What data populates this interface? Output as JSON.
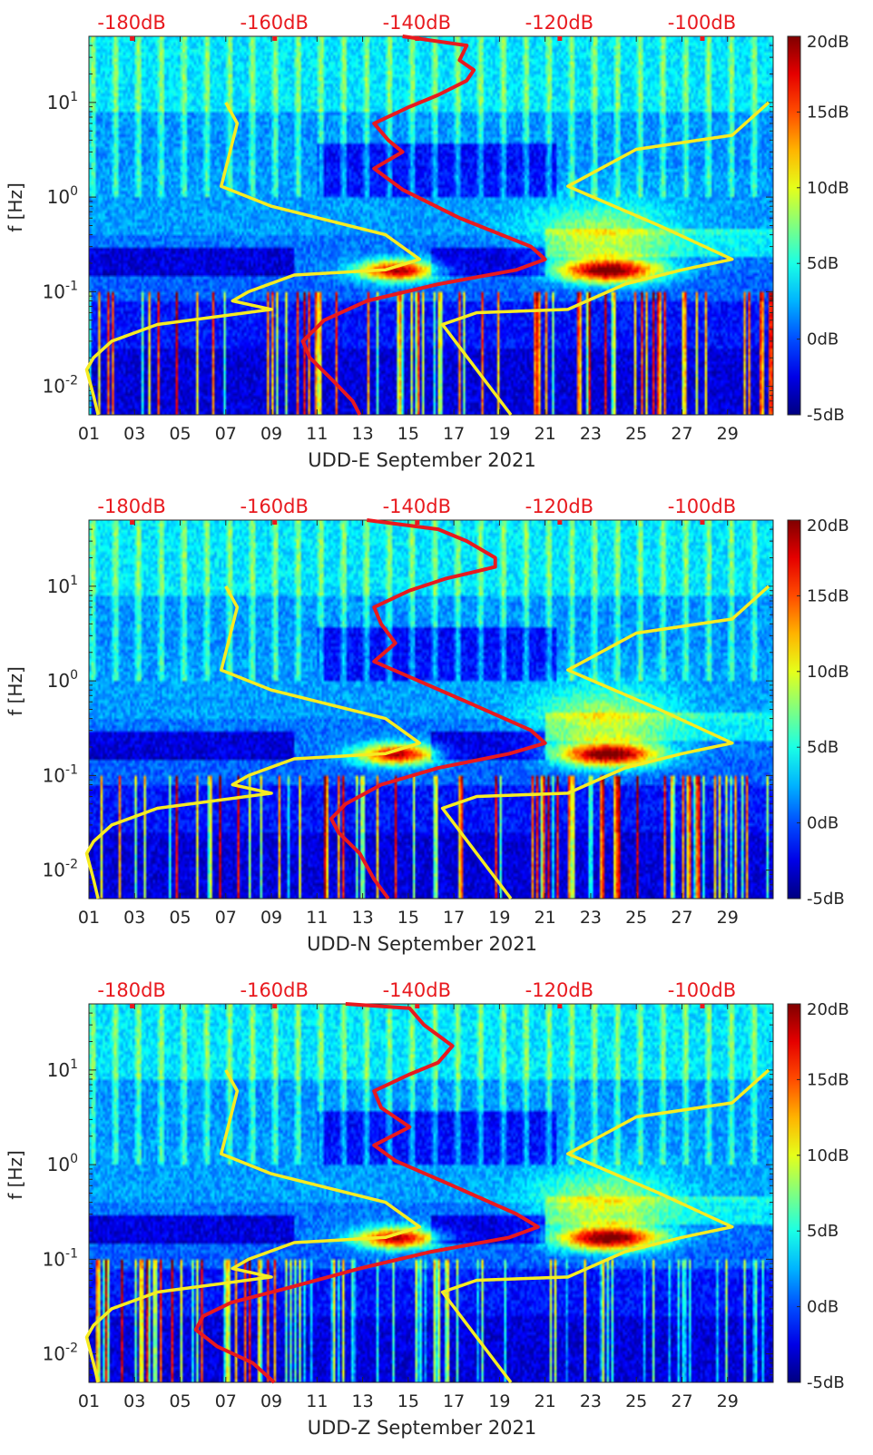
{
  "colors": {
    "psd_curve": "#e8191e",
    "model_curve": "#f6ec22",
    "top_axis_text": "#e8191e",
    "axis_text": "#262626"
  },
  "chart_data": [
    {
      "type": "heatmap",
      "station": "UDD-E",
      "xlabel": "UDD-E September 2021",
      "ylabel": "f [Hz]",
      "x_ticks": [
        "01",
        "03",
        "05",
        "07",
        "09",
        "11",
        "13",
        "15",
        "17",
        "19",
        "21",
        "23",
        "25",
        "27",
        "29"
      ],
      "x_range_days": [
        1,
        31
      ],
      "y_scale": "log",
      "ylim_hz": [
        0.005,
        50
      ],
      "y_ticks": [
        "10^-2",
        "10^-1",
        "10^0",
        "10^1"
      ],
      "top_axis_ticks": [
        "-180dB",
        "-160dB",
        "-140dB",
        "-120dB",
        "-100dB"
      ],
      "top_axis_values_db": [
        -180,
        -160,
        -140,
        -120,
        -100
      ],
      "top_axis_range_db": [
        -186,
        -90
      ],
      "colorbar_ticks": [
        "20dB",
        "15dB",
        "10dB",
        "5dB",
        "0dB",
        "-5dB"
      ],
      "colorbar_range_db": [
        -5,
        20
      ],
      "series": [
        {
          "name": "power spectral density",
          "color": "red",
          "points_db_hz": [
            [
              -142,
              50
            ],
            [
              -133,
              40
            ],
            [
              -134,
              28
            ],
            [
              -132,
              22
            ],
            [
              -133,
              17
            ],
            [
              -137,
              12
            ],
            [
              -141,
              9
            ],
            [
              -146,
              6
            ],
            [
              -144,
              4
            ],
            [
              -142,
              3
            ],
            [
              -146,
              2
            ],
            [
              -142,
              1.2
            ],
            [
              -134,
              0.6
            ],
            [
              -124,
              0.3
            ],
            [
              -122,
              0.22
            ],
            [
              -126,
              0.17
            ],
            [
              -137,
              0.12
            ],
            [
              -147,
              0.08
            ],
            [
              -153,
              0.05
            ],
            [
              -156,
              0.03
            ],
            [
              -155,
              0.02
            ],
            [
              -152,
              0.012
            ],
            [
              -149,
              0.007
            ],
            [
              -148,
              0.005
            ]
          ]
        },
        {
          "name": "noise model",
          "color": "yellow",
          "points_day_hz": [
            [
              7.0,
              10
            ],
            [
              7.5,
              6
            ],
            [
              6.8,
              1.3
            ],
            [
              9,
              0.8
            ],
            [
              14,
              0.4
            ],
            [
              15.5,
              0.22
            ],
            [
              14,
              0.17
            ],
            [
              10,
              0.15
            ],
            [
              8,
              0.1
            ],
            [
              7.3,
              0.08
            ],
            [
              9,
              0.065
            ],
            [
              4,
              0.045
            ],
            [
              2,
              0.03
            ],
            [
              1.2,
              0.02
            ],
            [
              0.9,
              0.015
            ],
            [
              1.2,
              0.008
            ],
            [
              1.4,
              0.005
            ]
          ]
        },
        {
          "name": "noise model",
          "color": "yellow",
          "points_day_hz": [
            [
              30.8,
              10
            ],
            [
              29.2,
              4.5
            ],
            [
              25,
              3.2
            ],
            [
              22,
              1.3
            ],
            [
              26,
              0.5
            ],
            [
              29.2,
              0.22
            ],
            [
              27,
              0.17
            ],
            [
              24.5,
              0.12
            ],
            [
              22,
              0.065
            ],
            [
              18,
              0.06
            ],
            [
              16.5,
              0.045
            ],
            [
              18,
              0.015
            ],
            [
              19.5,
              0.005
            ]
          ]
        }
      ]
    },
    {
      "type": "heatmap",
      "station": "UDD-N",
      "xlabel": "UDD-N September 2021",
      "ylabel": "f [Hz]",
      "x_ticks": [
        "01",
        "03",
        "05",
        "07",
        "09",
        "11",
        "13",
        "15",
        "17",
        "19",
        "21",
        "23",
        "25",
        "27",
        "29"
      ],
      "x_range_days": [
        1,
        31
      ],
      "y_scale": "log",
      "ylim_hz": [
        0.005,
        50
      ],
      "y_ticks": [
        "10^-2",
        "10^-1",
        "10^0",
        "10^1"
      ],
      "top_axis_ticks": [
        "-180dB",
        "-160dB",
        "-140dB",
        "-120dB",
        "-100dB"
      ],
      "top_axis_values_db": [
        -180,
        -160,
        -140,
        -120,
        -100
      ],
      "top_axis_range_db": [
        -186,
        -90
      ],
      "colorbar_ticks": [
        "20dB",
        "15dB",
        "10dB",
        "5dB",
        "0dB",
        "-5dB"
      ],
      "colorbar_range_db": [
        -5,
        20
      ],
      "series": [
        {
          "name": "power spectral density",
          "color": "red",
          "points_db_hz": [
            [
              -147,
              50
            ],
            [
              -137,
              40
            ],
            [
              -133,
              30
            ],
            [
              -129,
              20
            ],
            [
              -129,
              16
            ],
            [
              -136,
              12
            ],
            [
              -141,
              9
            ],
            [
              -146,
              6
            ],
            [
              -145,
              4
            ],
            [
              -143,
              2.5
            ],
            [
              -146,
              1.6
            ],
            [
              -141,
              1.1
            ],
            [
              -133,
              0.6
            ],
            [
              -124,
              0.3
            ],
            [
              -122,
              0.22
            ],
            [
              -127,
              0.17
            ],
            [
              -137,
              0.12
            ],
            [
              -145,
              0.08
            ],
            [
              -150,
              0.05
            ],
            [
              -152,
              0.035
            ],
            [
              -151,
              0.025
            ],
            [
              -148,
              0.015
            ],
            [
              -146,
              0.008
            ],
            [
              -144,
              0.005
            ]
          ]
        },
        {
          "name": "noise model",
          "color": "yellow",
          "points_day_hz": [
            [
              7.0,
              10
            ],
            [
              7.5,
              6
            ],
            [
              6.8,
              1.3
            ],
            [
              9,
              0.8
            ],
            [
              14,
              0.4
            ],
            [
              15.5,
              0.22
            ],
            [
              14,
              0.17
            ],
            [
              10,
              0.15
            ],
            [
              8,
              0.1
            ],
            [
              7.3,
              0.08
            ],
            [
              9,
              0.065
            ],
            [
              4,
              0.045
            ],
            [
              2,
              0.03
            ],
            [
              1.2,
              0.02
            ],
            [
              0.9,
              0.015
            ],
            [
              1.2,
              0.008
            ],
            [
              1.4,
              0.005
            ]
          ]
        },
        {
          "name": "noise model",
          "color": "yellow",
          "points_day_hz": [
            [
              30.8,
              10
            ],
            [
              29.2,
              4.5
            ],
            [
              25,
              3.2
            ],
            [
              22,
              1.3
            ],
            [
              26,
              0.5
            ],
            [
              29.2,
              0.22
            ],
            [
              27,
              0.17
            ],
            [
              24.5,
              0.12
            ],
            [
              22,
              0.065
            ],
            [
              18,
              0.06
            ],
            [
              16.5,
              0.045
            ],
            [
              18,
              0.015
            ],
            [
              19.5,
              0.005
            ]
          ]
        }
      ]
    },
    {
      "type": "heatmap",
      "station": "UDD-Z",
      "xlabel": "UDD-Z September 2021",
      "ylabel": "f [Hz]",
      "x_ticks": [
        "01",
        "03",
        "05",
        "07",
        "09",
        "11",
        "13",
        "15",
        "17",
        "19",
        "21",
        "23",
        "25",
        "27",
        "29"
      ],
      "x_range_days": [
        1,
        31
      ],
      "y_scale": "log",
      "ylim_hz": [
        0.005,
        50
      ],
      "y_ticks": [
        "10^-2",
        "10^-1",
        "10^0",
        "10^1"
      ],
      "top_axis_ticks": [
        "-180dB",
        "-160dB",
        "-140dB",
        "-120dB",
        "-100dB"
      ],
      "top_axis_values_db": [
        -180,
        -160,
        -140,
        -120,
        -100
      ],
      "top_axis_range_db": [
        -186,
        -90
      ],
      "colorbar_ticks": [
        "20dB",
        "15dB",
        "10dB",
        "5dB",
        "0dB",
        "-5dB"
      ],
      "colorbar_range_db": [
        -5,
        20
      ],
      "series": [
        {
          "name": "power spectral density",
          "color": "red",
          "points_db_hz": [
            [
              -150,
              50
            ],
            [
              -141,
              45
            ],
            [
              -139,
              30
            ],
            [
              -135,
              18
            ],
            [
              -137,
              12
            ],
            [
              -141,
              9
            ],
            [
              -146,
              6
            ],
            [
              -145,
              4
            ],
            [
              -141,
              2.5
            ],
            [
              -146,
              1.6
            ],
            [
              -143,
              1.1
            ],
            [
              -135,
              0.6
            ],
            [
              -126,
              0.3
            ],
            [
              -123,
              0.22
            ],
            [
              -127,
              0.17
            ],
            [
              -138,
              0.12
            ],
            [
              -148,
              0.08
            ],
            [
              -158,
              0.05
            ],
            [
              -166,
              0.035
            ],
            [
              -170,
              0.025
            ],
            [
              -171,
              0.018
            ],
            [
              -168,
              0.012
            ],
            [
              -163,
              0.008
            ],
            [
              -160,
              0.005
            ]
          ]
        },
        {
          "name": "noise model",
          "color": "yellow",
          "points_day_hz": [
            [
              7.0,
              10
            ],
            [
              7.5,
              6
            ],
            [
              6.8,
              1.3
            ],
            [
              9,
              0.8
            ],
            [
              14,
              0.4
            ],
            [
              15.5,
              0.22
            ],
            [
              14,
              0.17
            ],
            [
              10,
              0.15
            ],
            [
              8,
              0.1
            ],
            [
              7.3,
              0.08
            ],
            [
              9,
              0.065
            ],
            [
              4,
              0.045
            ],
            [
              2,
              0.03
            ],
            [
              1.2,
              0.02
            ],
            [
              0.9,
              0.015
            ],
            [
              1.2,
              0.008
            ],
            [
              1.4,
              0.005
            ]
          ]
        },
        {
          "name": "noise model",
          "color": "yellow",
          "points_day_hz": [
            [
              30.8,
              10
            ],
            [
              29.2,
              4.5
            ],
            [
              25,
              3.2
            ],
            [
              22,
              1.3
            ],
            [
              26,
              0.5
            ],
            [
              29.2,
              0.22
            ],
            [
              27,
              0.17
            ],
            [
              24.5,
              0.12
            ],
            [
              22,
              0.065
            ],
            [
              18,
              0.06
            ],
            [
              16.5,
              0.045
            ],
            [
              18,
              0.015
            ],
            [
              19.5,
              0.005
            ]
          ]
        }
      ]
    }
  ]
}
